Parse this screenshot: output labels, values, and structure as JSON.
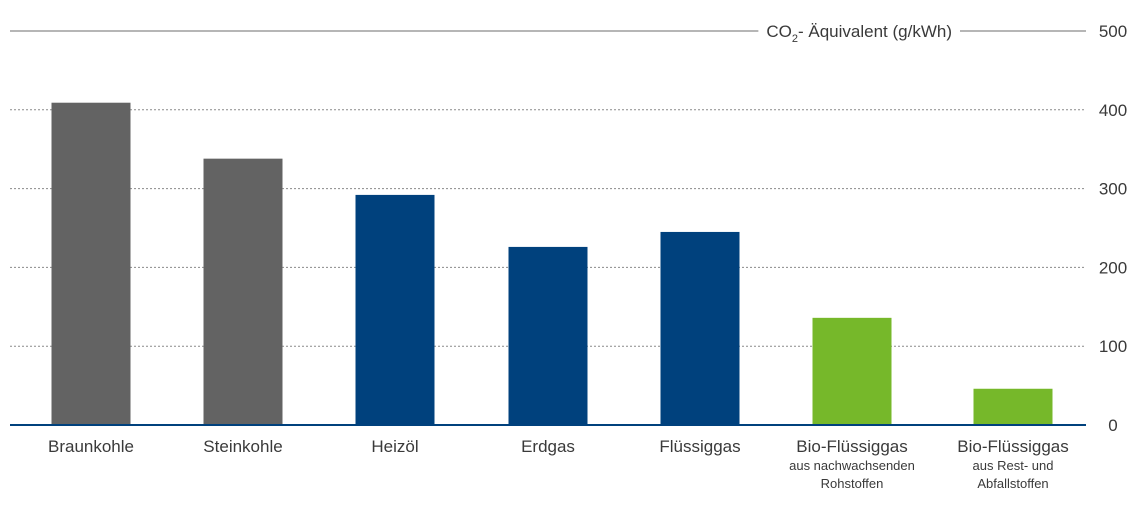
{
  "chart_data": {
    "type": "bar",
    "y_axis_title": {
      "prefix": "CO",
      "subscript": "2",
      "suffix": "- Äquivalent (g/kWh)"
    },
    "ylim": [
      0,
      500
    ],
    "yticks": [
      0,
      100,
      200,
      300,
      400,
      500
    ],
    "grid": true,
    "categories": [
      {
        "label": "Braunkohle",
        "sub": [],
        "value": 409,
        "color": "#636363"
      },
      {
        "label": "Steinkohle",
        "sub": [],
        "value": 338,
        "color": "#636363"
      },
      {
        "label": "Heizöl",
        "sub": [],
        "value": 292,
        "color": "#00417d"
      },
      {
        "label": "Erdgas",
        "sub": [],
        "value": 226,
        "color": "#00417d"
      },
      {
        "label": "Flüssiggas",
        "sub": [],
        "value": 245,
        "color": "#00417d"
      },
      {
        "label": "Bio-Flüssiggas",
        "sub": [
          "aus nachwachsenden",
          "Rohstoffen"
        ],
        "value": 136,
        "color": "#76b82a"
      },
      {
        "label": "Bio-Flüssiggas",
        "sub": [
          "aus Rest- und",
          "Abfallstoffen"
        ],
        "value": 46,
        "color": "#76b82a"
      }
    ],
    "colors": {
      "axis": "#00417d",
      "grid": "#8a8a8a",
      "text": "#3a3a3a"
    }
  }
}
